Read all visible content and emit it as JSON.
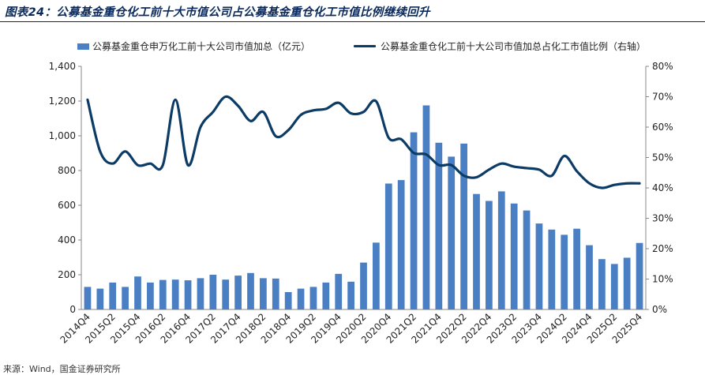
{
  "figure_title": "图表24：公募基金重仓化工前十大市值公司占公募基金重仓化工市值比例继续回升",
  "source_text": "来源：Wind，国金证券研究所",
  "colors": {
    "bar": "#4a7fc4",
    "line": "#0c3b66",
    "title": "#0b2a5b"
  },
  "chart_data": {
    "type": "bar",
    "title": "图表24：公募基金重仓化工前十大市值公司占公募基金重仓化工市值比例继续回升",
    "categories": [
      "2014Q4",
      "2015Q1",
      "2015Q2",
      "2015Q3",
      "2015Q4",
      "2016Q1",
      "2016Q2",
      "2016Q3",
      "2016Q4",
      "2017Q1",
      "2017Q2",
      "2017Q3",
      "2017Q4",
      "2018Q1",
      "2018Q2",
      "2018Q3",
      "2018Q4",
      "2019Q1",
      "2019Q2",
      "2019Q3",
      "2019Q4",
      "2020Q1",
      "2020Q2",
      "2020Q3",
      "2020Q4",
      "2021Q1",
      "2021Q2",
      "2021Q3",
      "2021Q4",
      "2022Q1",
      "2022Q2",
      "2022Q3",
      "2022Q4",
      "2023Q1",
      "2023Q2",
      "2023Q3",
      "2023Q4",
      "2024Q1",
      "2024Q2",
      "2024Q3",
      "2024Q4",
      "2025Q1",
      "2025Q2",
      "2025Q3",
      "2025Q4"
    ],
    "x_tick_labels": [
      "2014Q4",
      "2015Q2",
      "2015Q4",
      "2016Q2",
      "2016Q4",
      "2017Q2",
      "2017Q4",
      "2018Q2",
      "2018Q4",
      "2019Q2",
      "2019Q4",
      "2020Q2",
      "2020Q4",
      "2021Q2",
      "2021Q4",
      "2022Q2",
      "2022Q4",
      "2023Q2",
      "2023Q4",
      "2024Q2",
      "2024Q4",
      "2025Q2",
      "2025Q4"
    ],
    "series": [
      {
        "name": "公募基金重仓申万化工前十大公司市值加总（亿元）",
        "type": "bar",
        "axis": "left",
        "values": [
          130,
          120,
          155,
          130,
          190,
          155,
          170,
          172,
          168,
          180,
          200,
          172,
          195,
          210,
          180,
          178,
          100,
          120,
          130,
          155,
          205,
          160,
          270,
          385,
          725,
          745,
          1020,
          1175,
          960,
          880,
          955,
          665,
          625,
          680,
          610,
          570,
          495,
          460,
          430,
          465,
          370,
          290,
          262,
          298,
          383
        ]
      },
      {
        "name": "公募基金重仓化工前十大公司市值加总占化工市值比例（右轴）",
        "type": "line",
        "axis": "right",
        "unit": "%",
        "values": [
          69,
          52,
          48,
          52,
          47.5,
          48,
          47.5,
          69,
          47.5,
          60,
          65,
          70,
          67,
          62,
          65,
          57,
          59,
          64,
          65.5,
          66,
          68,
          64.5,
          65,
          68.5,
          56.5,
          56,
          51.5,
          51,
          47.5,
          47.5,
          44,
          43.5,
          46,
          48,
          47,
          46.5,
          46,
          44,
          50.5,
          45.5,
          41.5,
          40,
          41,
          41.5,
          41.5
        ]
      }
    ],
    "left_axis": {
      "min": 0,
      "max": 1400,
      "step": 200,
      "tick_labels": [
        "0",
        "200",
        "400",
        "600",
        "800",
        "1,000",
        "1,200",
        "1,400"
      ]
    },
    "right_axis": {
      "min": 0,
      "max": 80,
      "step": 10,
      "tick_labels": [
        "0%",
        "10%",
        "20%",
        "30%",
        "40%",
        "50%",
        "60%",
        "70%",
        "80%"
      ]
    },
    "legend_position": "top",
    "grid": false
  }
}
